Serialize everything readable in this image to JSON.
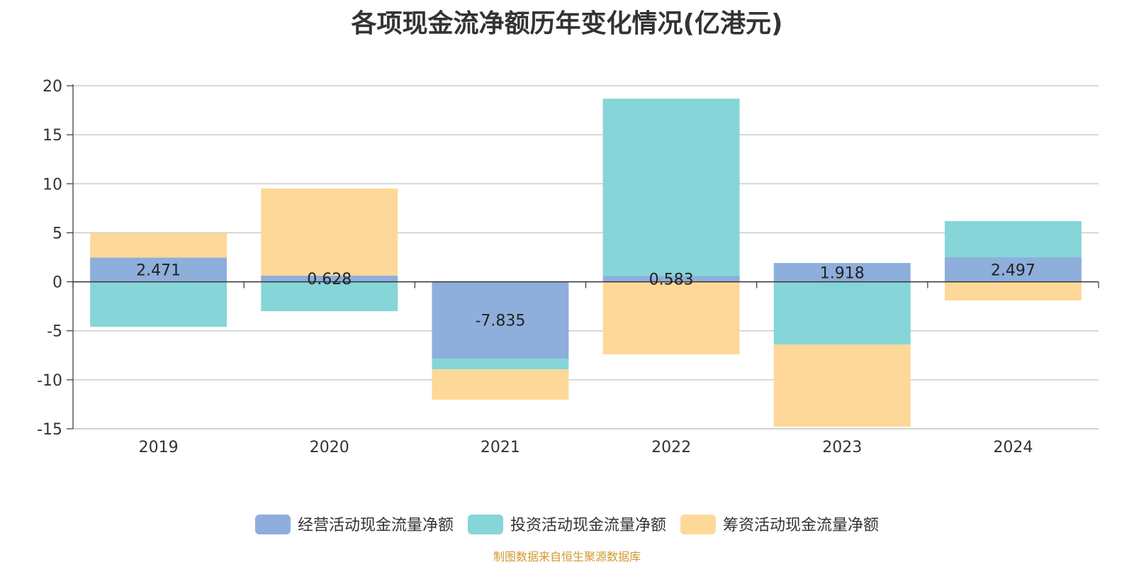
{
  "chart_data": {
    "type": "bar",
    "stacked": true,
    "title": "各项现金流净额历年变化情况(亿港元)",
    "categories": [
      "2019",
      "2020",
      "2021",
      "2022",
      "2023",
      "2024"
    ],
    "series": [
      {
        "name": "经营活动现金流量净额",
        "color": "#8eaedc",
        "values": [
          2.471,
          0.628,
          -7.835,
          0.583,
          1.918,
          2.497
        ],
        "labels": [
          "2.471",
          "0.628",
          "-7.835",
          "0.583",
          "1.918",
          "2.497"
        ]
      },
      {
        "name": "投资活动现金流量净额",
        "color": "#86d5d8",
        "values": [
          -4.6,
          -3.0,
          -1.1,
          18.1,
          -6.4,
          3.7
        ]
      },
      {
        "name": "筹资活动现金流量净额",
        "color": "#fed898",
        "values": [
          2.5,
          8.9,
          -3.1,
          -7.4,
          -8.4,
          -1.9
        ]
      }
    ],
    "yticks": [
      20,
      15,
      10,
      5,
      0,
      -5,
      -10,
      -15
    ],
    "ylim": [
      -15,
      20
    ],
    "xlabel": "",
    "ylabel": "",
    "legend_position": "bottom-center",
    "grid": true
  },
  "source_note": "制图数据来自恒生聚源数据库"
}
